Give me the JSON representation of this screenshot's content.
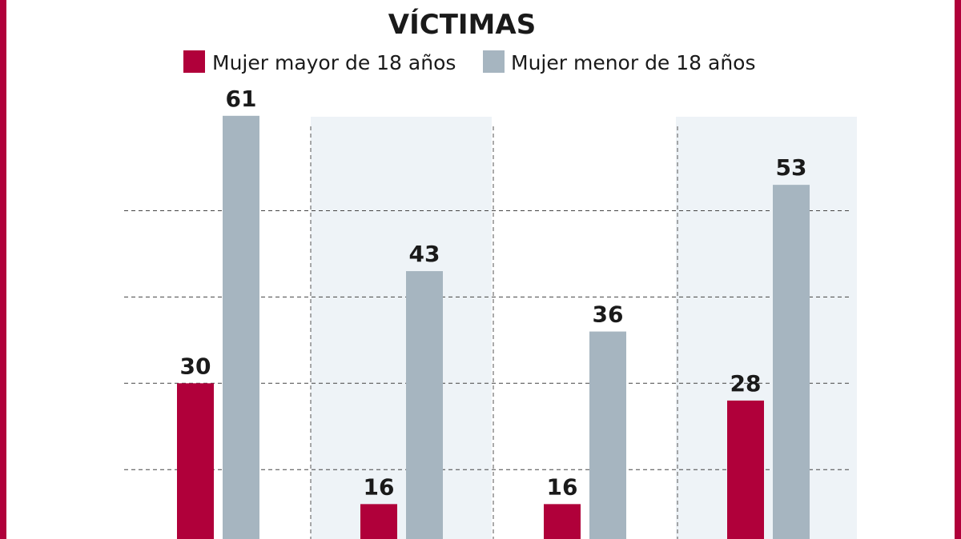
{
  "chart_data": {
    "type": "bar",
    "title": "VÍCTIMAS",
    "categories": [
      "",
      "",
      "",
      ""
    ],
    "series": [
      {
        "name": "Mujer mayor de 18 años",
        "color": "#b0003a",
        "values": [
          30,
          16,
          16,
          28
        ]
      },
      {
        "name": "Mujer menor de 18 años",
        "color": "#a6b5c0",
        "values": [
          61,
          43,
          36,
          53
        ]
      }
    ],
    "gridlines": [
      20,
      30,
      40,
      50
    ],
    "grid": true,
    "legend": "top",
    "band_color": "#eef3f7",
    "border_color": "#b0003a"
  }
}
